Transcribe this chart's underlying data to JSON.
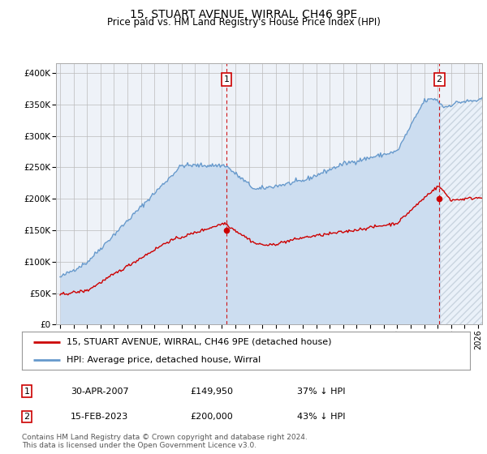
{
  "title": "15, STUART AVENUE, WIRRAL, CH46 9PE",
  "subtitle": "Price paid vs. HM Land Registry's House Price Index (HPI)",
  "ylabel_ticks": [
    "£0",
    "£50K",
    "£100K",
    "£150K",
    "£200K",
    "£250K",
    "£300K",
    "£350K",
    "£400K"
  ],
  "ytick_values": [
    0,
    50000,
    100000,
    150000,
    200000,
    250000,
    300000,
    350000,
    400000
  ],
  "ylim": [
    0,
    415000
  ],
  "xlim_start": 1994.7,
  "xlim_end": 2026.3,
  "hpi_color": "#6699cc",
  "hpi_fill_color": "#ccddf0",
  "price_color": "#cc0000",
  "annotation_box_color": "#cc0000",
  "vline_color": "#cc0000",
  "background_color": "#eef2f8",
  "grid_color": "#bbbbbb",
  "sale1_date": 2007.33,
  "sale1_price": 149950,
  "sale1_label": "1",
  "sale2_date": 2023.12,
  "sale2_price": 200000,
  "sale2_label": "2",
  "legend_line1": "15, STUART AVENUE, WIRRAL, CH46 9PE (detached house)",
  "legend_line2": "HPI: Average price, detached house, Wirral",
  "table_row1": [
    "1",
    "30-APR-2007",
    "£149,950",
    "37% ↓ HPI"
  ],
  "table_row2": [
    "2",
    "15-FEB-2023",
    "£200,000",
    "43% ↓ HPI"
  ],
  "footnote": "Contains HM Land Registry data © Crown copyright and database right 2024.\nThis data is licensed under the Open Government Licence v3.0.",
  "hatch_pattern": "////",
  "hatch_color": "#99aabb"
}
